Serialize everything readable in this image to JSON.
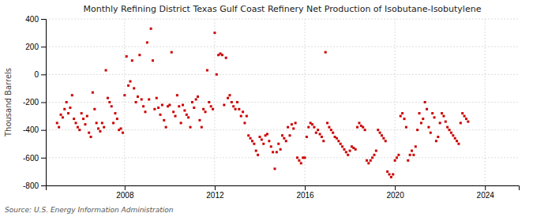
{
  "chart_data": {
    "type": "scatter",
    "title": "Monthly Refining District Texas Gulf Coast Refinery Net Production of Isobutane-Isobutylene",
    "ylabel": "Thousand Barrels",
    "annotations": [
      "Source: U.S. Energy Information Administration"
    ],
    "color": "#cc0000",
    "marker": "square",
    "grid": true,
    "xlim": [
      2004.5,
      2025.5
    ],
    "xticks": [
      2008,
      2012,
      2016,
      2020,
      2024
    ],
    "ylim": [
      -800,
      400
    ],
    "yticks": [
      -800,
      -600,
      -400,
      -200,
      0,
      200,
      400
    ],
    "x": [
      2005.0,
      2005.083,
      2005.167,
      2005.25,
      2005.333,
      2005.417,
      2005.5,
      2005.583,
      2005.667,
      2005.75,
      2005.833,
      2005.917,
      2006.0,
      2006.083,
      2006.167,
      2006.25,
      2006.333,
      2006.417,
      2006.5,
      2006.583,
      2006.667,
      2006.75,
      2006.833,
      2006.917,
      2007.0,
      2007.083,
      2007.167,
      2007.25,
      2007.333,
      2007.417,
      2007.5,
      2007.583,
      2007.667,
      2007.75,
      2007.833,
      2007.917,
      2008.0,
      2008.083,
      2008.167,
      2008.25,
      2008.333,
      2008.417,
      2008.5,
      2008.583,
      2008.667,
      2008.75,
      2008.833,
      2008.917,
      2009.0,
      2009.083,
      2009.167,
      2009.25,
      2009.333,
      2009.417,
      2009.5,
      2009.583,
      2009.667,
      2009.75,
      2009.833,
      2009.917,
      2010.0,
      2010.083,
      2010.167,
      2010.25,
      2010.333,
      2010.417,
      2010.5,
      2010.583,
      2010.667,
      2010.75,
      2010.833,
      2010.917,
      2011.0,
      2011.083,
      2011.167,
      2011.25,
      2011.333,
      2011.417,
      2011.5,
      2011.583,
      2011.667,
      2011.75,
      2011.833,
      2011.917,
      2012.0,
      2012.083,
      2012.167,
      2012.25,
      2012.333,
      2012.417,
      2012.5,
      2012.583,
      2012.667,
      2012.75,
      2012.833,
      2012.917,
      2013.0,
      2013.083,
      2013.167,
      2013.25,
      2013.333,
      2013.417,
      2013.5,
      2013.583,
      2013.667,
      2013.75,
      2013.833,
      2013.917,
      2014.0,
      2014.083,
      2014.167,
      2014.25,
      2014.333,
      2014.417,
      2014.5,
      2014.583,
      2014.667,
      2014.75,
      2014.833,
      2014.917,
      2015.0,
      2015.083,
      2015.167,
      2015.25,
      2015.333,
      2015.417,
      2015.5,
      2015.583,
      2015.667,
      2015.75,
      2015.833,
      2015.917,
      2016.0,
      2016.083,
      2016.167,
      2016.25,
      2016.333,
      2016.417,
      2016.5,
      2016.583,
      2016.667,
      2016.75,
      2016.833,
      2016.917,
      2017.0,
      2017.083,
      2017.167,
      2017.25,
      2017.333,
      2017.417,
      2017.5,
      2017.583,
      2017.667,
      2017.75,
      2017.833,
      2017.917,
      2018.0,
      2018.083,
      2018.167,
      2018.25,
      2018.333,
      2018.417,
      2018.5,
      2018.583,
      2018.667,
      2018.75,
      2018.833,
      2018.917,
      2019.0,
      2019.083,
      2019.167,
      2019.25,
      2019.333,
      2019.417,
      2019.5,
      2019.583,
      2019.667,
      2019.75,
      2019.833,
      2019.917,
      2020.0,
      2020.083,
      2020.167,
      2020.25,
      2020.333,
      2020.417,
      2020.5,
      2020.583,
      2020.667,
      2020.75,
      2020.833,
      2020.917,
      2021.0,
      2021.083,
      2021.167,
      2021.25,
      2021.333,
      2021.417,
      2021.5,
      2021.583,
      2021.667,
      2021.75,
      2021.833,
      2021.917,
      2022.0,
      2022.083,
      2022.167,
      2022.25,
      2022.333,
      2022.417,
      2022.5,
      2022.583,
      2022.667,
      2022.75,
      2022.833,
      2022.917,
      2023.0,
      2023.083,
      2023.167,
      2023.25
    ],
    "values": [
      -350,
      -380,
      -290,
      -310,
      -250,
      -200,
      -280,
      -240,
      -150,
      -320,
      -350,
      -380,
      -400,
      -280,
      -320,
      -360,
      -300,
      -420,
      -450,
      -130,
      -250,
      -350,
      -390,
      -410,
      -350,
      -380,
      30,
      -170,
      -200,
      -230,
      -350,
      -280,
      -320,
      -400,
      -390,
      -420,
      -150,
      130,
      -80,
      -50,
      100,
      -100,
      -200,
      -160,
      140,
      -180,
      -230,
      -270,
      230,
      -180,
      330,
      100,
      -250,
      -170,
      -240,
      -290,
      -220,
      -330,
      -380,
      -230,
      -220,
      160,
      -270,
      -300,
      -150,
      -230,
      -350,
      -220,
      -260,
      -290,
      -310,
      -380,
      -200,
      -240,
      -180,
      -160,
      -330,
      -380,
      -250,
      -270,
      30,
      -200,
      -230,
      -250,
      300,
      0,
      140,
      150,
      140,
      -220,
      120,
      -170,
      -150,
      -200,
      -230,
      -250,
      -200,
      -250,
      -300,
      -270,
      -350,
      -300,
      -440,
      -460,
      -480,
      -500,
      -550,
      -580,
      -450,
      -470,
      -500,
      -440,
      -430,
      -480,
      -520,
      -560,
      -680,
      -560,
      -500,
      -540,
      -440,
      -460,
      -480,
      -380,
      -440,
      -360,
      -390,
      -350,
      -600,
      -620,
      -640,
      -600,
      -600,
      -450,
      -380,
      -350,
      -360,
      -380,
      -420,
      -400,
      -430,
      -450,
      -480,
      160,
      -350,
      -380,
      -400,
      -420,
      -450,
      -460,
      -480,
      -500,
      -520,
      -540,
      -560,
      -580,
      -550,
      -520,
      -530,
      -540,
      -380,
      -350,
      -370,
      -380,
      -400,
      -620,
      -640,
      -620,
      -600,
      -580,
      -550,
      -400,
      -420,
      -440,
      -460,
      -480,
      -700,
      -720,
      -740,
      -720,
      -620,
      -600,
      -580,
      -300,
      -280,
      -320,
      -380,
      -620,
      -580,
      -550,
      -580,
      -520,
      -400,
      -280,
      -350,
      -320,
      -200,
      -250,
      -380,
      -420,
      -280,
      -310,
      -480,
      -450,
      -350,
      -280,
      -300,
      -340,
      -380,
      -400,
      -420,
      -440,
      -460,
      -480,
      -500,
      -350,
      -280,
      -300,
      -320,
      -340
    ]
  }
}
